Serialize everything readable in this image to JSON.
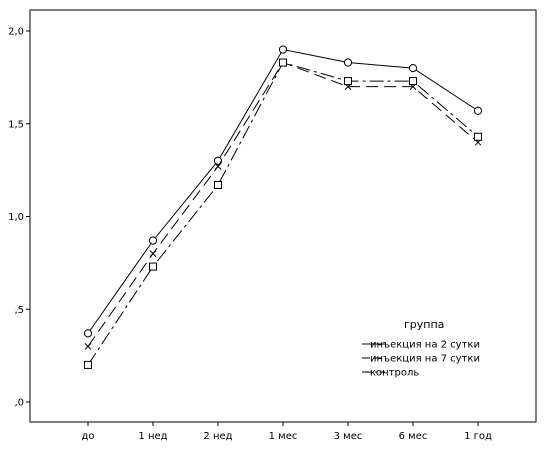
{
  "chart_data": {
    "type": "line",
    "title": "",
    "xlabel": "",
    "ylabel": "",
    "categories": [
      "до",
      "1 нед",
      "2 нед",
      "1 мес",
      "3 мес",
      "6 мес",
      "1 год"
    ],
    "ylim": [
      0,
      2.0
    ],
    "y_ticks": [
      0,
      0.5,
      1.0,
      1.5,
      2.0
    ],
    "y_tick_labels": [
      ",0",
      ",5",
      "1,0",
      "1,5",
      "2,0"
    ],
    "grid": false,
    "legend": {
      "title": "группа",
      "placement": "bottom-right"
    },
    "series": [
      {
        "name": "инъекция на 2 сутки",
        "marker": "circle",
        "line_style": "solid",
        "color": "#000000",
        "values": [
          0.37,
          0.87,
          1.3,
          1.9,
          1.83,
          1.8,
          1.57
        ]
      },
      {
        "name": "инъекция на 7 сутки",
        "marker": "x",
        "line_style": "dashed",
        "color": "#000000",
        "values": [
          0.3,
          0.8,
          1.27,
          1.83,
          1.7,
          1.7,
          1.4
        ]
      },
      {
        "name": "контроль",
        "marker": "square",
        "line_style": "dash-dot",
        "color": "#000000",
        "values": [
          0.2,
          0.73,
          1.17,
          1.83,
          1.73,
          1.73,
          1.43
        ]
      }
    ]
  }
}
